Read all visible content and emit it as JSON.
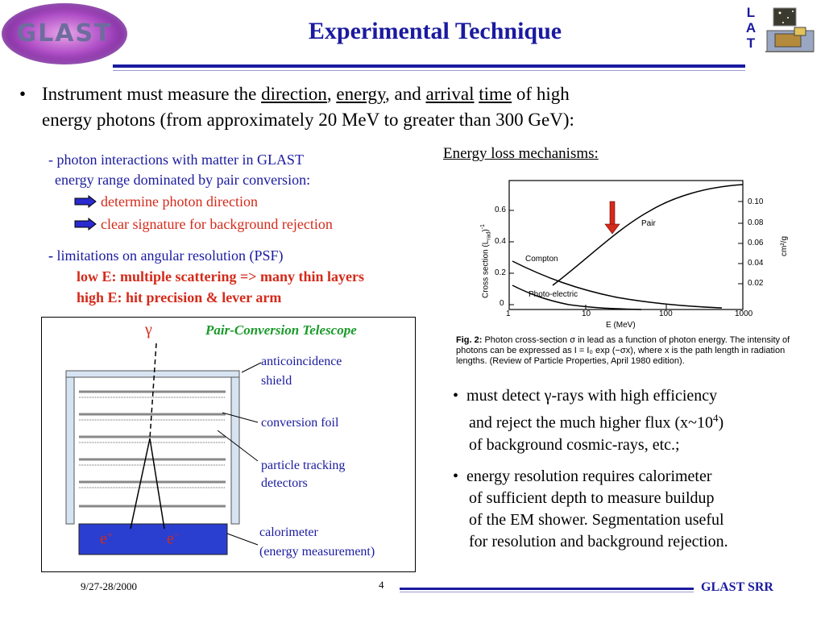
{
  "header": {
    "logo_text": "GLAST",
    "title": "Experimental Technique",
    "lat_letters": [
      "L",
      "A",
      "T"
    ]
  },
  "main": {
    "bullet": "•",
    "line1_prefix": "Instrument must measure the",
    "w_direction": "direction",
    "comma1": ",",
    "w_energy": "energy",
    "and_text": ", and",
    "w_arrival": "arrival",
    "w_time": "time",
    "line1_suffix": "of high",
    "line2": "energy photons (from approximately 20 MeV to greater than 300 GeV):"
  },
  "left": {
    "line1": "- photon interactions with matter in GLAST",
    "line2": "energy range dominated by pair conversion:",
    "arrow1": "determine photon direction",
    "arrow2": "clear signature for background rejection",
    "dash": "-",
    "limit": "limitations on angular resolution (PSF)",
    "low": "low  E: multiple scattering => many thin layers",
    "high": "high E: hit precision & lever arm"
  },
  "telescope": {
    "title": "Pair-Conversion Telescope",
    "gamma": "γ",
    "anti1": "anticoincidence",
    "anti2": "shield",
    "foil": "conversion foil",
    "track1": "particle tracking",
    "track2": "detectors",
    "cal1": "calorimeter",
    "cal2": "(energy measurement)",
    "eplus": "e",
    "eplus_sup": "+",
    "eminus": "e",
    "eminus_sup": "−"
  },
  "energy_loss": {
    "title": "Energy loss mechanisms:",
    "ylabel": "Cross section (L",
    "ylabel_sub": "rad",
    "ylabel_end": ")",
    "ylabel_sup": "-1",
    "xlabel": "E (MeV)",
    "y2label": "cm²/g",
    "label_pair": "Pair",
    "label_compton": "Compton",
    "label_photo": "Photo-electric",
    "yticks": [
      "0",
      "0.2",
      "0.4",
      "0.6"
    ],
    "xticks": [
      "1",
      "10",
      "100",
      "1000"
    ],
    "y2ticks": [
      "0.10",
      "0.08",
      "0.06",
      "0.04",
      "0.02"
    ],
    "caption_bold": "Fig. 2:",
    "caption": "Photon cross-section σ in lead as a function of photon energy. The intensity of photons can be expressed as I = I₀ exp (−σx), where x is the path length in radiation lengths. (Review of Particle Properties, April 1980 edition)."
  },
  "right": {
    "b1_l1": "must detect γ-rays with high efficiency",
    "b1_l2_a": "and reject the much higher flux (x~10",
    "b1_l2_sup": "4",
    "b1_l2_b": ")",
    "b1_l3": "of background cosmic-rays, etc.;",
    "b2_l1": "energy resolution requires calorimeter",
    "b2_l2": "of sufficient depth to measure buildup",
    "b2_l3": "of the EM shower. Segmentation useful",
    "b2_l4": "for resolution and background rejection."
  },
  "footer": {
    "date": "9/27-28/2000",
    "page": "4",
    "right": "GLAST SRR"
  },
  "colors": {
    "blue": "#1a1aa0",
    "red": "#d42a1a",
    "cal_blue": "#2a3fd0"
  }
}
